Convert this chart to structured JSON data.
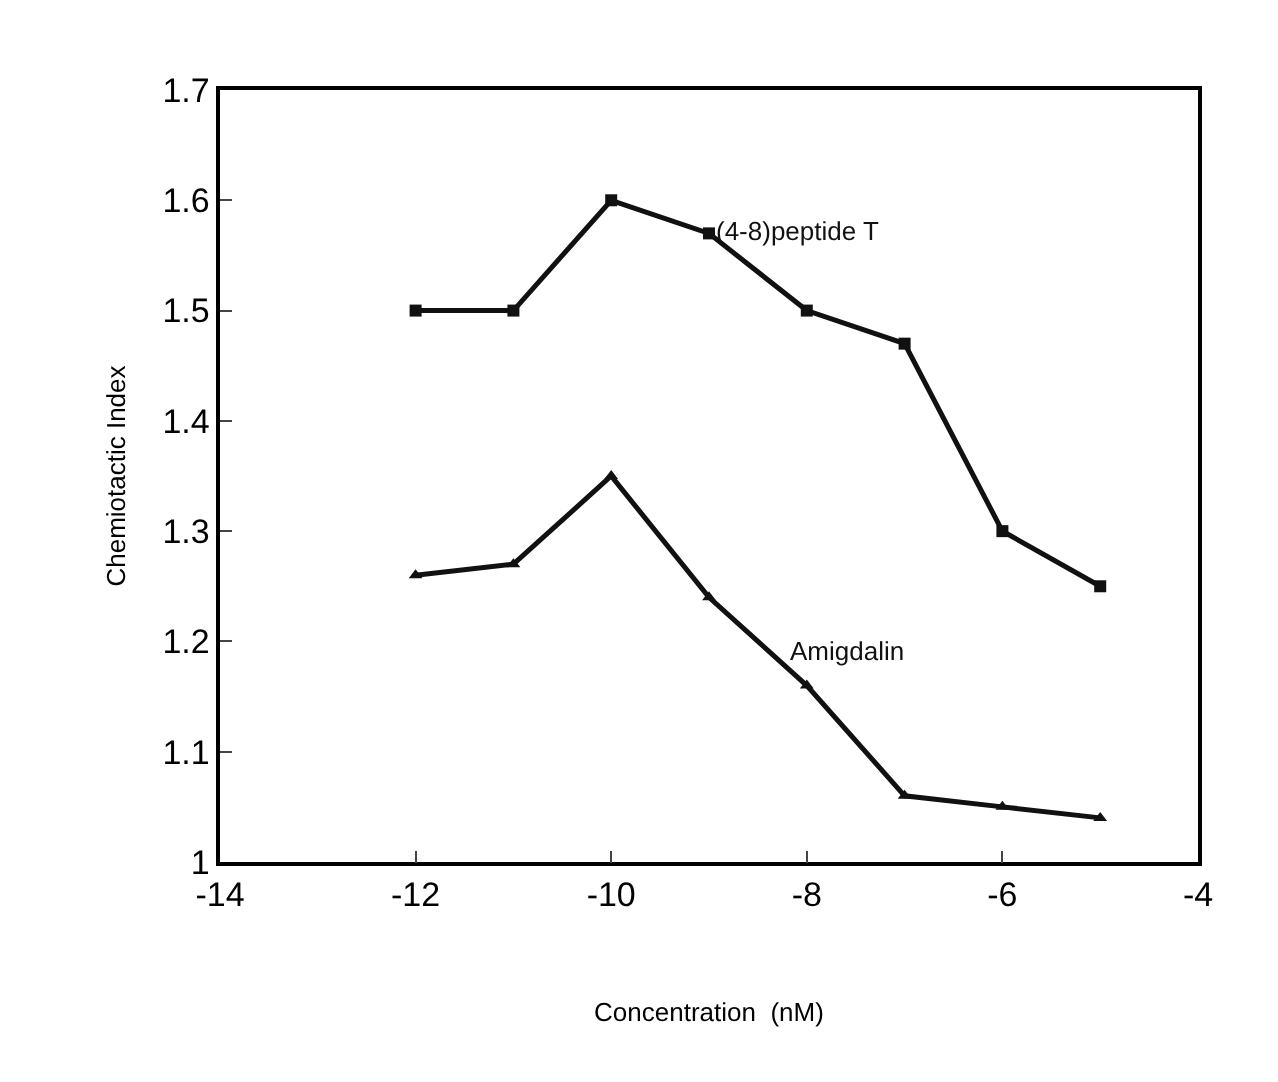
{
  "chart_data": {
    "type": "line",
    "xlabel": "Concentration  (nM)",
    "ylabel": "Chemiotactic Index",
    "x": [
      -12,
      -11,
      -10,
      -9,
      -8,
      -7,
      -6,
      -5
    ],
    "series": [
      {
        "name": "(4-8)peptide T",
        "color": "#111111",
        "marker": "square",
        "values": [
          1.5,
          1.5,
          1.6,
          1.57,
          1.5,
          1.47,
          1.3,
          1.25
        ]
      },
      {
        "name": "Amigdalin",
        "color": "#111111",
        "marker": "triangle",
        "values": [
          1.26,
          1.27,
          1.35,
          1.24,
          1.16,
          1.06,
          1.05,
          1.04
        ]
      }
    ],
    "xlim": [
      -14,
      -4
    ],
    "xticks": [
      -14,
      -12,
      -10,
      -8,
      -6,
      -4
    ],
    "ylim": [
      1,
      1.7
    ],
    "yticks": [
      1,
      1.1,
      1.2,
      1.3,
      1.4,
      1.5,
      1.6,
      1.7
    ],
    "legend": false,
    "line_style": "solid"
  }
}
